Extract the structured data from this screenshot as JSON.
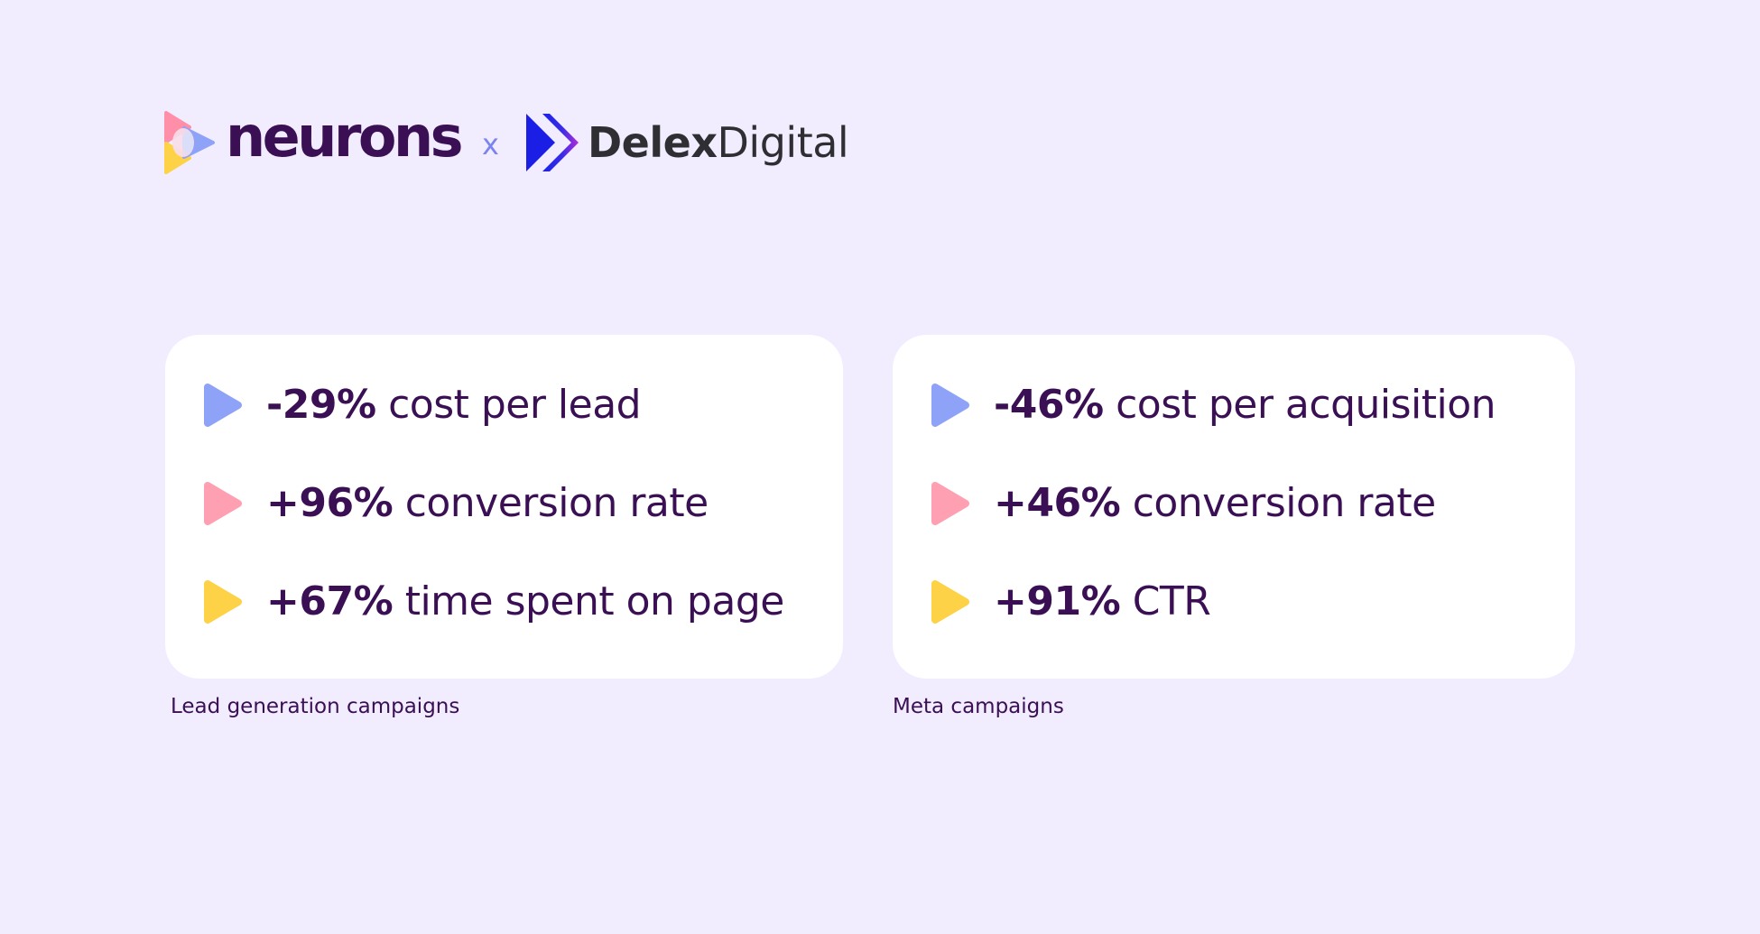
{
  "colors": {
    "background": "#f1edff",
    "card": "#ffffff",
    "text": "#3a0f54",
    "triangle_blue": "#8ea2f8",
    "triangle_pink": "#ff9fb2",
    "triangle_yellow": "#fdd247"
  },
  "logos": {
    "neurons": {
      "icon": "neurons-logo-icon",
      "text": "neurons"
    },
    "separator": "x",
    "delex": {
      "icon": "delex-digital-logo-icon",
      "text_bold": "Delex",
      "text_light": "Digital"
    }
  },
  "cards": [
    {
      "caption": "Lead generation campaigns",
      "stats": [
        {
          "icon": "blue-play-triangle-icon",
          "value": "-29%",
          "label": "cost per lead"
        },
        {
          "icon": "pink-play-triangle-icon",
          "value": "+96%",
          "label": "conversion rate"
        },
        {
          "icon": "yellow-play-triangle-icon",
          "value": "+67%",
          "label": "time spent on page"
        }
      ]
    },
    {
      "caption": "Meta campaigns",
      "stats": [
        {
          "icon": "blue-play-triangle-icon",
          "value": "-46%",
          "label": "cost per acquisition"
        },
        {
          "icon": "pink-play-triangle-icon",
          "value": "+46%",
          "label": "conversion rate"
        },
        {
          "icon": "yellow-play-triangle-icon",
          "value": "+91%",
          "label": "CTR"
        }
      ]
    }
  ]
}
